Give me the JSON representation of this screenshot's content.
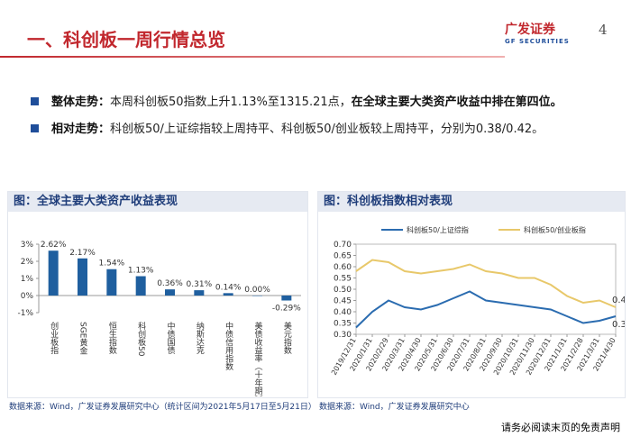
{
  "header": {
    "title": "一、科创板一周行情总览",
    "page_number": "4",
    "logo_cn": "广发证券",
    "logo_en": "GF SECURITIES"
  },
  "bullets": [
    {
      "label": "整体走势：",
      "text": "本周科创板50指数上升1.13%至1315.21点，",
      "emphasis": "在全球主要大类资产收益中排在第四位。"
    },
    {
      "label": "相对走势：",
      "text": "科创板50/上证综指较上周持平、科创板50/创业板较上周持平，分别为0.38/0.42。"
    }
  ],
  "chart_data": [
    {
      "type": "bar",
      "title": "图：全球主要大类资产收益表现",
      "color": "#1f5f9f",
      "categories": [
        "创业板指",
        "SGE黄金",
        "恒生指数",
        "科创板50",
        "中债国债",
        "纳斯达克",
        "中债信用指数",
        "美债收益率（十年期）",
        "美元指数"
      ],
      "values": [
        2.62,
        2.17,
        1.54,
        1.13,
        0.36,
        0.31,
        0.14,
        0.0,
        -0.29
      ],
      "value_labels": [
        "2.62%",
        "2.17%",
        "1.54%",
        "1.13%",
        "0.36%",
        "0.31%",
        "0.14%",
        "0.00%",
        "-0.29%"
      ],
      "ylim": [
        -1,
        3
      ],
      "yticks": [
        {
          "value": -1,
          "label": "-1%"
        },
        {
          "value": 0,
          "label": "0%"
        },
        {
          "value": 1,
          "label": "1%"
        },
        {
          "value": 2,
          "label": "2%"
        },
        {
          "value": 3,
          "label": "3%"
        }
      ],
      "source": "数据来源：Wind，广发证券发展研究中心（统计区间为2021年5月17日至5月21日）"
    },
    {
      "type": "line",
      "title": "图：科创板指数相对表现",
      "x": [
        "2019/12/31",
        "2020/1/31",
        "2020/2/29",
        "2020/3/31",
        "2020/4/30",
        "2020/5/31",
        "2020/6/30",
        "2020/7/31",
        "2020/8/31",
        "2020/9/30",
        "2020/10/31",
        "2020/11/30",
        "2020/12/31",
        "2021/1/31",
        "2021/2/28",
        "2021/3/31",
        "2021/4/30"
      ],
      "series": [
        {
          "name": "科创板50/上证综指",
          "color": "#2b6cb0",
          "values": [
            0.33,
            0.4,
            0.45,
            0.42,
            0.41,
            0.43,
            0.46,
            0.49,
            0.45,
            0.44,
            0.43,
            0.42,
            0.41,
            0.38,
            0.35,
            0.36,
            0.38
          ]
        },
        {
          "name": "科创板50/创业板指",
          "color": "#e8c86a",
          "values": [
            0.58,
            0.63,
            0.62,
            0.58,
            0.57,
            0.58,
            0.59,
            0.61,
            0.58,
            0.57,
            0.55,
            0.55,
            0.52,
            0.47,
            0.44,
            0.45,
            0.42
          ]
        }
      ],
      "ylim": [
        0.3,
        0.7
      ],
      "yticks": [
        {
          "value": 0.3,
          "label": "0.30"
        },
        {
          "value": 0.35,
          "label": "0.35"
        },
        {
          "value": 0.4,
          "label": "0.40"
        },
        {
          "value": 0.45,
          "label": "0.45"
        },
        {
          "value": 0.5,
          "label": "0.50"
        },
        {
          "value": 0.55,
          "label": "0.55"
        },
        {
          "value": 0.6,
          "label": "0.60"
        },
        {
          "value": 0.65,
          "label": "0.65"
        },
        {
          "value": 0.7,
          "label": "0.70"
        }
      ],
      "source": "数据来源：Wind，广发证券发展研究中心"
    }
  ],
  "footer": "请务必阅读末页的免责声明"
}
